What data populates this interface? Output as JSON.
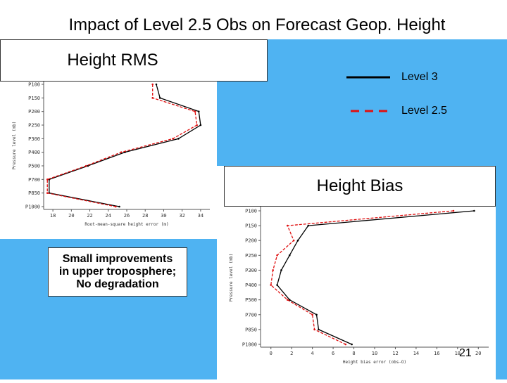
{
  "slide": {
    "title": "Impact of Level 2.5 Obs on Forecast Geop. Height",
    "page_number": "21"
  },
  "rms_box": {
    "label": "Height RMS"
  },
  "bias_box": {
    "label": "Height Bias"
  },
  "note": {
    "line1": "Small improvements",
    "line2": "in upper troposphere;",
    "line3": "No degradation"
  },
  "legend": {
    "level3": "Level 3",
    "level25": "Level 2.5",
    "level3_color": "#000000",
    "level25_color": "#e01010"
  },
  "chart_data": [
    {
      "type": "line",
      "title": "Height RMS",
      "xlabel": "Root-mean-square height error (m)",
      "ylabel": "Pressure level (mb)",
      "xlim": [
        17,
        35
      ],
      "xticks": [
        18,
        20,
        22,
        24,
        26,
        28,
        30,
        32,
        34
      ],
      "levels": [
        "P100",
        "P150",
        "P200",
        "P250",
        "P300",
        "P400",
        "P500",
        "P700",
        "P850",
        "P1000"
      ],
      "series": [
        {
          "name": "Level 3",
          "color": "#000000",
          "dash": false,
          "values": [
            29.2,
            29.6,
            33.8,
            34.0,
            31.6,
            25.8,
            21.8,
            17.6,
            17.6,
            25.2
          ]
        },
        {
          "name": "Level 2.5",
          "color": "#e01010",
          "dash": true,
          "values": [
            28.8,
            28.8,
            33.4,
            33.6,
            31.0,
            25.4,
            21.6,
            17.4,
            17.4,
            24.8
          ]
        }
      ]
    },
    {
      "type": "line",
      "title": "Height Bias",
      "xlabel": "Height bias error (obs-O)",
      "ylabel": "Pressure level (mb)",
      "xlim": [
        -1,
        21
      ],
      "xticks": [
        0,
        2,
        4,
        6,
        8,
        10,
        12,
        14,
        16,
        18,
        20
      ],
      "levels": [
        "P100",
        "P150",
        "P200",
        "P250",
        "P300",
        "P400",
        "P500",
        "P700",
        "P850",
        "P1000"
      ],
      "series": [
        {
          "name": "Level 3",
          "color": "#000000",
          "dash": false,
          "values": [
            19.6,
            3.6,
            2.6,
            1.8,
            1.0,
            0.6,
            1.8,
            4.4,
            4.6,
            7.8
          ]
        },
        {
          "name": "Level 2.5",
          "color": "#e01010",
          "dash": true,
          "values": [
            17.6,
            1.6,
            2.2,
            0.6,
            0.2,
            0.0,
            1.6,
            4.0,
            4.2,
            7.2
          ]
        }
      ]
    }
  ]
}
